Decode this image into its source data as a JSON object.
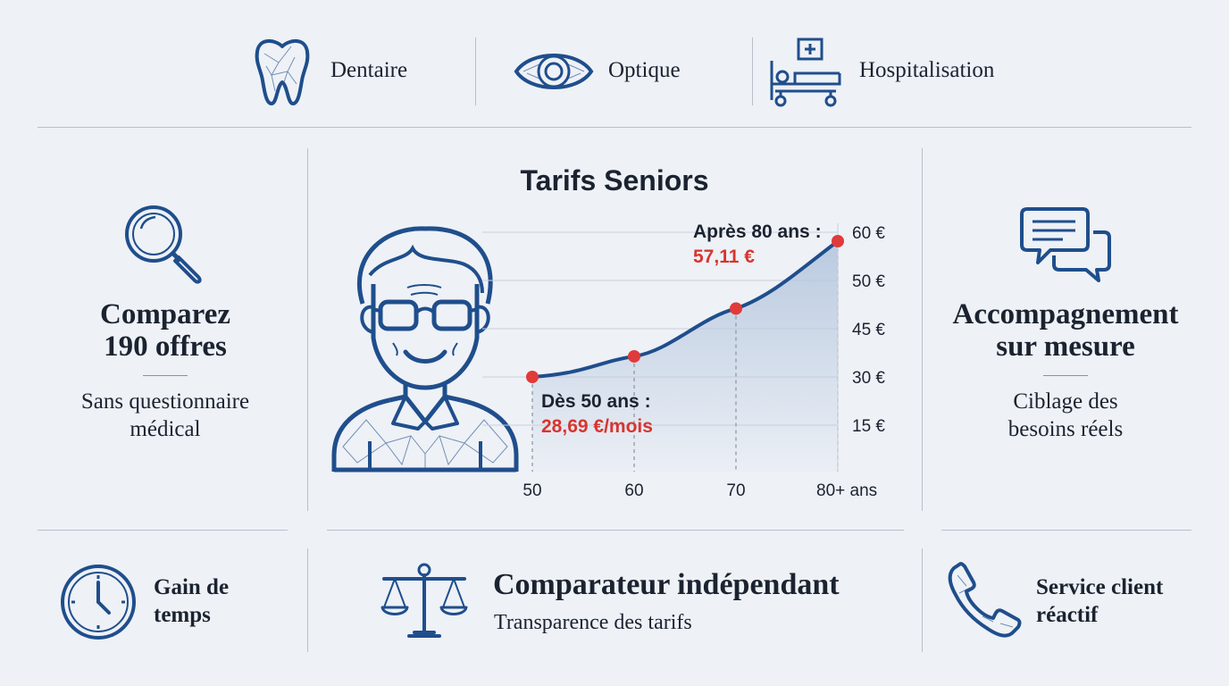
{
  "top_categories": [
    {
      "label": "Dentaire",
      "icon": "tooth-icon"
    },
    {
      "label": "Optique",
      "icon": "eye-icon"
    },
    {
      "label": "Hospitalisation",
      "icon": "hospital-bed-icon"
    }
  ],
  "left_panel": {
    "title_line1": "Comparez",
    "title_line2": "190 offres",
    "text_line1": "Sans questionnaire",
    "text_line2": "médical",
    "icon": "magnifier-icon"
  },
  "right_panel": {
    "title_line1": "Accompagnement",
    "title_line2": "sur mesure",
    "text_line1": "Ciblage des",
    "text_line2": "besoins réels",
    "icon": "chat-bubbles-icon"
  },
  "chart_data": {
    "type": "line",
    "title": "Tarifs Seniors",
    "categories": [
      "50",
      "60",
      "70",
      "80+ ans"
    ],
    "x": [
      50,
      60,
      70,
      80
    ],
    "values": [
      28.69,
      33.0,
      43.0,
      57.11
    ],
    "y_ticks": [
      "15 €",
      "30 €",
      "45 €",
      "50 €",
      "60 €"
    ],
    "annotations": [
      {
        "label": "Dès 50 ans :",
        "value": "28,69 €/mois"
      },
      {
        "label": "Après 80 ans :",
        "value": "57,11 €"
      }
    ],
    "grid": true,
    "colors": {
      "line": "#1f4e8c",
      "points": "#e03a3a",
      "area": "#b7c8df",
      "value_text": "#d7352f"
    }
  },
  "bottom_items": [
    {
      "line1": "Gain de",
      "line2": "temps",
      "icon": "clock-icon"
    },
    {
      "title": "Comparateur indépendant",
      "subtitle": "Transparence des tarifs",
      "icon": "scales-icon"
    },
    {
      "line1": "Service client",
      "line2": "réactif",
      "icon": "phone-icon"
    }
  ],
  "colors": {
    "background": "#eef1f6",
    "icon": "#1f4e8c",
    "accent_red": "#e03a3a"
  }
}
